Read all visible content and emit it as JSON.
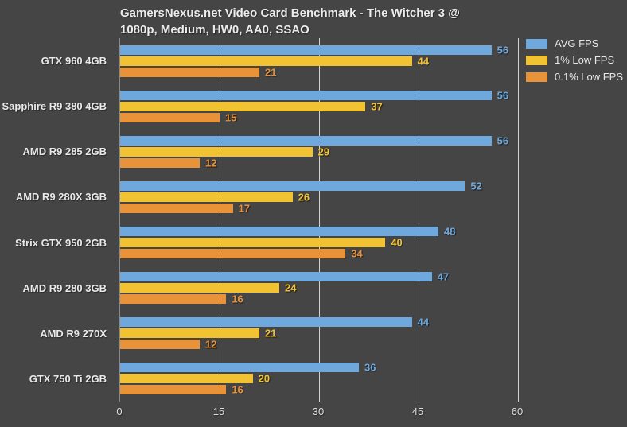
{
  "title": {
    "line1": "GamersNexus.net Video Card Benchmark - The Witcher 3 @",
    "line2": "1080p, Medium, HW0, AA0, SSAO"
  },
  "legend": {
    "position": "top-right",
    "items": [
      {
        "label": "AVG FPS",
        "color": "#6fa8dc"
      },
      {
        "label": "1% Low FPS",
        "color": "#f1c232"
      },
      {
        "label": "0.1% Low FPS",
        "color": "#e8923a"
      }
    ]
  },
  "chart_data": {
    "type": "bar",
    "orientation": "horizontal",
    "title": "GamersNexus.net Video Card Benchmark - The Witcher 3 @ 1080p, Medium, HW0, AA0, SSAO",
    "categories": [
      "GTX 960 4GB",
      "Sapphire R9 380 4GB",
      "AMD R9 285 2GB",
      "AMD R9 280X 3GB",
      "Strix GTX 950 2GB",
      "AMD R9 280 3GB",
      "AMD R9 270X",
      "GTX 750 Ti 2GB"
    ],
    "series": [
      {
        "name": "AVG FPS",
        "color": "#6fa8dc",
        "values": [
          56,
          56,
          56,
          52,
          48,
          47,
          44,
          36
        ]
      },
      {
        "name": "1% Low FPS",
        "color": "#f1c232",
        "values": [
          44,
          37,
          29,
          26,
          40,
          24,
          21,
          20
        ]
      },
      {
        "name": "0.1% Low FPS",
        "color": "#e8923a",
        "values": [
          21,
          15,
          12,
          17,
          34,
          16,
          12,
          16
        ]
      }
    ],
    "xlabel": "",
    "ylabel": "",
    "xlim": [
      0,
      60
    ],
    "xticks": [
      0,
      15,
      30,
      45,
      60
    ],
    "grid": "vertical",
    "legend_position": "top-right"
  },
  "colors": {
    "background": "#454545",
    "gridline": "#d2d2d2",
    "axis_line": "#8a8a8a",
    "text": "#ececec"
  }
}
